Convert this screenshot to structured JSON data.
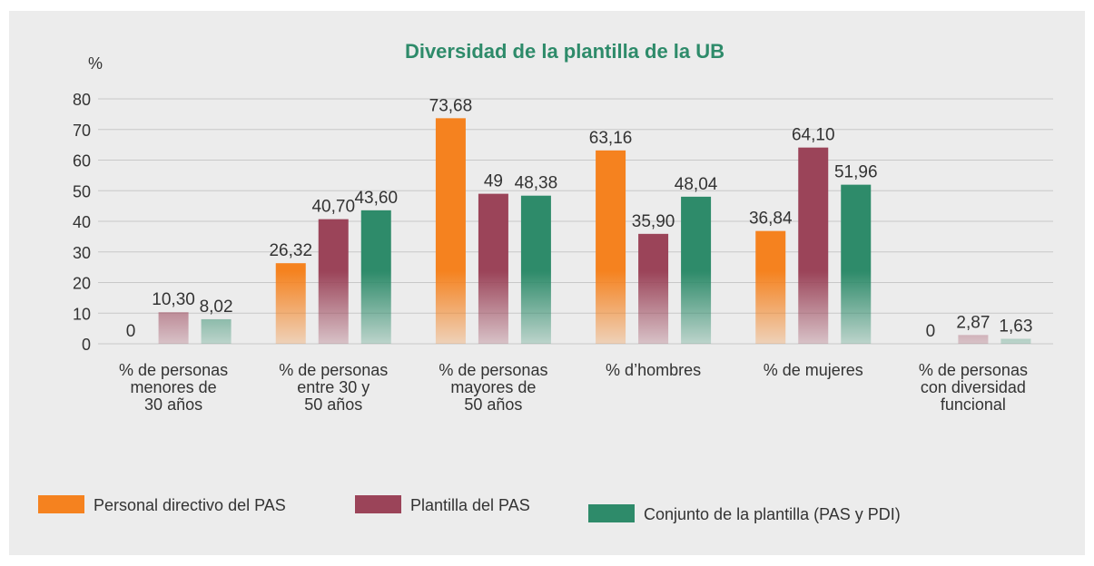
{
  "chart_data": {
    "type": "bar",
    "title": "Diversidad de la plantilla de la UB",
    "y_label": "%",
    "categories": [
      "% de personas\nmenores de\n30 años",
      "% de personas\nentre 30 y\n50 años",
      "% de personas\nmayores de\n50 años",
      "% d’hombres",
      "% de mujeres",
      "% de personas\ncon diversidad\nfuncional"
    ],
    "series": [
      {
        "name": "Personal directivo del PAS",
        "color": "#f5821f",
        "values": [
          0,
          26.32,
          73.68,
          63.16,
          36.84,
          0
        ],
        "value_labels": [
          "0",
          "26,32",
          "73,68",
          "63,16",
          "36,84",
          "0"
        ]
      },
      {
        "name": "Plantilla del PAS",
        "color": "#9b4459",
        "values": [
          10.3,
          40.7,
          49,
          35.9,
          64.1,
          2.87
        ],
        "value_labels": [
          "10,30",
          "40,70",
          "49",
          "35,90",
          "64,10",
          "2,87"
        ]
      },
      {
        "name": "Conjunto de la plantilla (PAS y PDI)",
        "color": "#2e8b6a",
        "values": [
          8.02,
          43.6,
          48.38,
          48.04,
          51.96,
          1.63
        ],
        "value_labels": [
          "8,02",
          "43,60",
          "48,38",
          "48,04",
          "51,96",
          "1,63"
        ]
      }
    ],
    "ylim": [
      0,
      80
    ],
    "yticks": [
      0,
      10,
      20,
      30,
      40,
      50,
      60,
      70,
      80
    ],
    "grid": true,
    "legend": "bottom"
  }
}
